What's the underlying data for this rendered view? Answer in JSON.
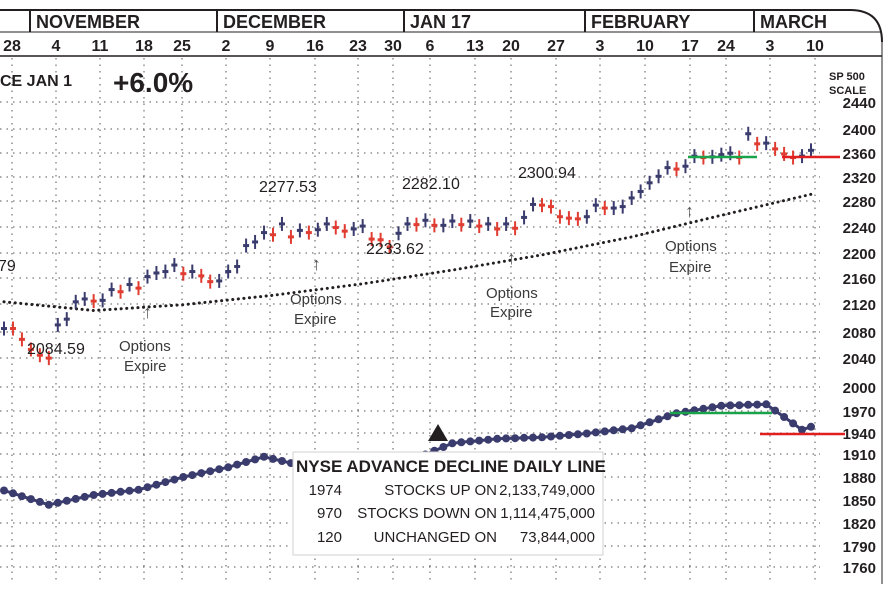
{
  "header": {
    "since_label": "CE JAN 1",
    "change_pct": "+6.0%",
    "scale_label_1": "SP 500",
    "scale_label_2": "SCALE"
  },
  "months": [
    "NOVEMBER",
    "DECEMBER",
    "JAN 17",
    "FEBRUARY",
    "MARCH"
  ],
  "days": [
    "28",
    "4",
    "11",
    "18",
    "25",
    "2",
    "9",
    "16",
    "23",
    "30",
    "6",
    "13",
    "20",
    "27",
    "3",
    "10",
    "17",
    "24",
    "3",
    "10"
  ],
  "y_ticks": [
    "2440",
    "2400",
    "2360",
    "2320",
    "2280",
    "2240",
    "2200",
    "2160",
    "2120",
    "2080",
    "2040",
    "2000",
    "1970",
    "1940",
    "1910",
    "1880",
    "1850",
    "1820",
    "1790",
    "1760"
  ],
  "annotations": {
    "low1": "2084.59",
    "partial_value": "79",
    "high1": "2277.53",
    "high2": "2282.10",
    "low2": "2233.62",
    "high3": "2300.94",
    "options_1a": "Options",
    "options_1b": "Expire",
    "options_2a": "Options",
    "options_2b": "Expire",
    "options_3a": "Options",
    "options_3b": "Expire",
    "options_4a": "Options",
    "options_4b": "Expire"
  },
  "breadth_box": {
    "title": "NYSE ADVANCE DECLINE DAILY LINE",
    "rows": [
      {
        "count": "1974",
        "label": "STOCKS  UP ON",
        "volume": "2,133,749,000"
      },
      {
        "count": "970",
        "label": "STOCKS  DOWN ON",
        "volume": "1,114,475,000"
      },
      {
        "count": "120",
        "label": "UNCHANGED ON",
        "volume": "73,844,000"
      }
    ]
  },
  "colors": {
    "up_bar": "#3b3c6e",
    "down_bar": "#e03c31",
    "moving_average": "#231f20",
    "ad_line": "#3b3c6e",
    "support_green": "#1aa34a",
    "resistance_red": "#e02020",
    "grid": "#555555"
  },
  "chart_data": [
    {
      "type": "bar",
      "subtype": "ohlc-daily",
      "title": "",
      "ylabel": "SP 500 SCALE",
      "ylim": [
        2020,
        2440
      ],
      "grid": true,
      "x": [
        "Oct 28",
        "Oct 31",
        "Nov 1",
        "Nov 2",
        "Nov 3",
        "Nov 4",
        "Nov 7",
        "Nov 8",
        "Nov 9",
        "Nov 10",
        "Nov 11",
        "Nov 14",
        "Nov 15",
        "Nov 16",
        "Nov 17",
        "Nov 18",
        "Nov 21",
        "Nov 22",
        "Nov 23",
        "Nov 25",
        "Nov 28",
        "Nov 29",
        "Nov 30",
        "Dec 1",
        "Dec 2",
        "Dec 5",
        "Dec 6",
        "Dec 7",
        "Dec 8",
        "Dec 9",
        "Dec 12",
        "Dec 13",
        "Dec 14",
        "Dec 15",
        "Dec 16",
        "Dec 19",
        "Dec 20",
        "Dec 21",
        "Dec 22",
        "Dec 23",
        "Dec 27",
        "Dec 28",
        "Dec 29",
        "Dec 30",
        "Jan 3",
        "Jan 4",
        "Jan 5",
        "Jan 6",
        "Jan 9",
        "Jan 10",
        "Jan 11",
        "Jan 12",
        "Jan 13",
        "Jan 17",
        "Jan 18",
        "Jan 19",
        "Jan 20",
        "Jan 23",
        "Jan 24",
        "Jan 25",
        "Jan 26",
        "Jan 27",
        "Jan 30",
        "Jan 31",
        "Feb 1",
        "Feb 2",
        "Feb 3",
        "Feb 6",
        "Feb 7",
        "Feb 8",
        "Feb 9",
        "Feb 10",
        "Feb 13",
        "Feb 14",
        "Feb 15",
        "Feb 16",
        "Feb 17",
        "Feb 21",
        "Feb 22",
        "Feb 23",
        "Feb 24",
        "Feb 27",
        "Feb 28",
        "Mar 1",
        "Mar 2",
        "Mar 3",
        "Mar 6",
        "Mar 7",
        "Mar 8",
        "Mar 9",
        "Mar 10"
      ],
      "close": [
        2126,
        2126,
        2111,
        2097,
        2089,
        2085,
        2131,
        2139,
        2163,
        2167,
        2164,
        2165,
        2180,
        2177,
        2187,
        2182,
        2198,
        2203,
        2205,
        2214,
        2202,
        2205,
        2199,
        2191,
        2192,
        2205,
        2212,
        2241,
        2246,
        2259,
        2256,
        2271,
        2253,
        2262,
        2259,
        2263,
        2271,
        2266,
        2261,
        2264,
        2268,
        2250,
        2249,
        2239,
        2258,
        2271,
        2270,
        2276,
        2269,
        2269,
        2275,
        2270,
        2275,
        2268,
        2271,
        2264,
        2271,
        2265,
        2280,
        2298,
        2297,
        2295,
        2281,
        2279,
        2278,
        2281,
        2297,
        2293,
        2293,
        2295,
        2307,
        2316,
        2328,
        2337,
        2349,
        2347,
        2351,
        2365,
        2363,
        2364,
        2367,
        2369,
        2363,
        2396,
        2382,
        2383,
        2375,
        2368,
        2363,
        2365,
        2373
      ],
      "up": [
        true,
        false,
        false,
        false,
        false,
        false,
        true,
        true,
        true,
        true,
        false,
        true,
        true,
        false,
        true,
        false,
        true,
        true,
        true,
        true,
        false,
        true,
        false,
        false,
        true,
        true,
        true,
        true,
        true,
        true,
        false,
        true,
        false,
        true,
        false,
        true,
        true,
        false,
        false,
        true,
        true,
        false,
        false,
        false,
        true,
        true,
        false,
        true,
        false,
        true,
        true,
        false,
        true,
        false,
        true,
        false,
        true,
        false,
        true,
        true,
        false,
        false,
        false,
        false,
        false,
        true,
        true,
        false,
        true,
        true,
        true,
        true,
        true,
        true,
        true,
        false,
        true,
        true,
        false,
        true,
        true,
        true,
        false,
        true,
        false,
        true,
        false,
        false,
        false,
        true,
        true
      ]
    },
    {
      "type": "line",
      "name": "moving average",
      "x_index": [
        0,
        10,
        20,
        30,
        40,
        50,
        60,
        70,
        80,
        90
      ],
      "values": [
        2163,
        2151,
        2159,
        2172,
        2188,
        2207,
        2228,
        2253,
        2283,
        2312
      ]
    },
    {
      "type": "line",
      "name": "NYSE ADVANCE DECLINE DAILY LINE",
      "ylim": [
        1760,
        2000
      ],
      "x_index": [
        0,
        5,
        10,
        15,
        20,
        25,
        29,
        35,
        40,
        45,
        50,
        55,
        60,
        65,
        70,
        75,
        80,
        85,
        89,
        90
      ],
      "values": [
        1862,
        1843,
        1856,
        1863,
        1880,
        1893,
        1907,
        1890,
        1870,
        1900,
        1925,
        1931,
        1933,
        1938,
        1945,
        1965,
        1975,
        1977,
        1943,
        1947
      ]
    }
  ]
}
